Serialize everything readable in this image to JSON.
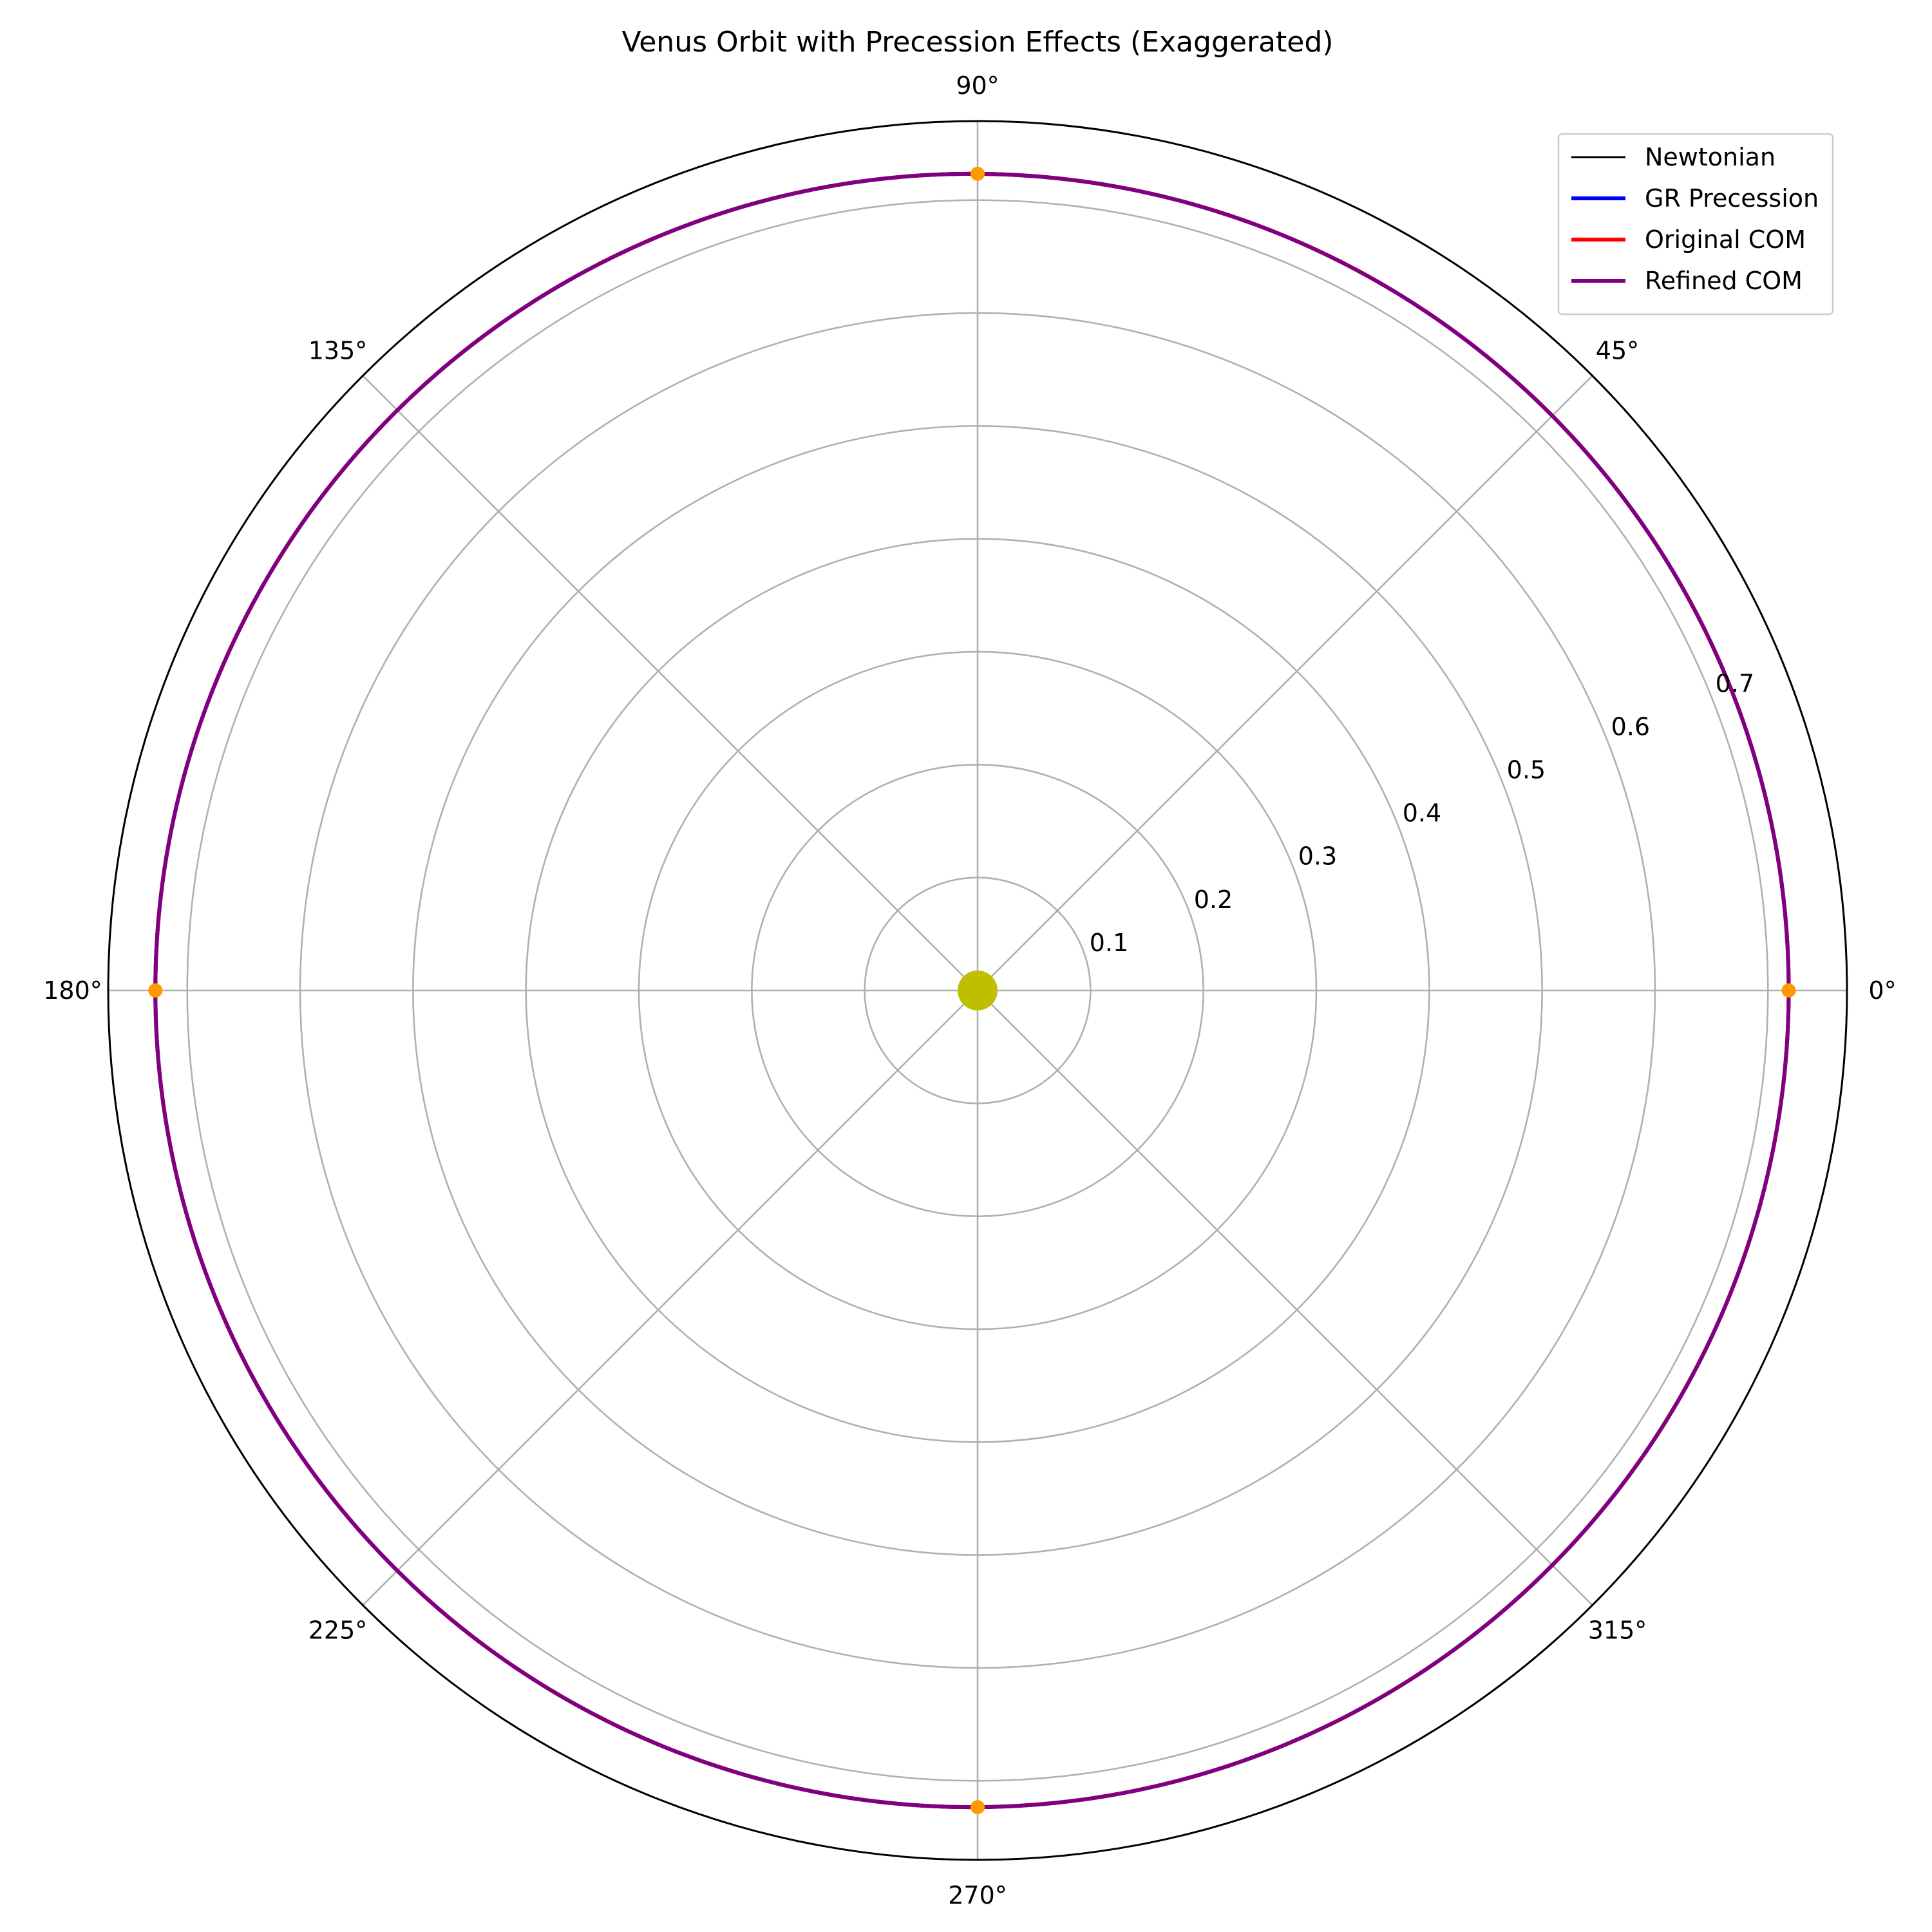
{
  "chart_data": {
    "type": "polar-line",
    "title": "Venus Orbit with Precession Effects (Exaggerated)",
    "theta_unit": "degrees",
    "rlim": [
      0,
      0.77
    ],
    "r_ticks": [
      0.1,
      0.2,
      0.3,
      0.4,
      0.5,
      0.6,
      0.7
    ],
    "r_tick_labels": [
      "0.1",
      "0.2",
      "0.3",
      "0.4",
      "0.5",
      "0.6",
      "0.7"
    ],
    "r_label_angle_deg": 22.5,
    "theta_ticks": [
      0,
      45,
      90,
      135,
      180,
      225,
      270,
      315
    ],
    "theta_tick_labels": [
      "0°",
      "45°",
      "90°",
      "135°",
      "180°",
      "225°",
      "270°",
      "315°"
    ],
    "grid": true,
    "legend_position": "top-right",
    "series": [
      {
        "name": "Newtonian",
        "color": "#000000",
        "semi_major_axis": 0.7233,
        "eccentricity": 0.0068,
        "perihelion_deg": 0
      },
      {
        "name": "GR Precession",
        "color": "#0000ff",
        "semi_major_axis": 0.7233,
        "eccentricity": 0.0068,
        "perihelion_deg": 0
      },
      {
        "name": "Original COM",
        "color": "#ff0000",
        "semi_major_axis": 0.7233,
        "eccentricity": 0.0068,
        "perihelion_deg": 0
      },
      {
        "name": "Refined COM",
        "color": "#800080",
        "semi_major_axis": 0.7233,
        "eccentricity": 0.0068,
        "perihelion_deg": 0
      }
    ],
    "markers": {
      "color": "#ff9900",
      "points": [
        {
          "theta": 0,
          "r": 0.7184
        },
        {
          "theta": 90,
          "r": 0.7233
        },
        {
          "theta": 180,
          "r": 0.7282
        },
        {
          "theta": 270,
          "r": 0.7233
        }
      ]
    },
    "center_marker": {
      "color": "#bfbf00",
      "theta": 0,
      "r": 0
    }
  }
}
